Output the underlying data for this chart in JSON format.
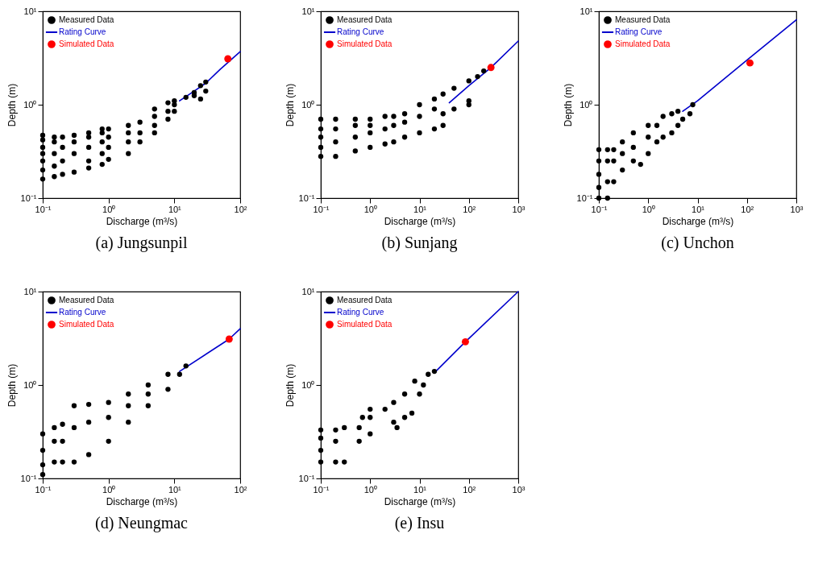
{
  "chart_data": [
    {
      "type": "scatter",
      "title": "(a) Jungsunpil",
      "xlabel": "Discharge (m³/s)",
      "ylabel": "Depth (m)",
      "log": "xy",
      "legend": "top left",
      "xlim": [
        0.1,
        100
      ],
      "ylim": [
        0.1,
        10
      ],
      "xticks": [
        {
          "value": 0.1,
          "label": "10⁻¹"
        },
        {
          "value": 1,
          "label": "10⁰"
        },
        {
          "value": 10,
          "label": "10¹"
        },
        {
          "value": 100,
          "label": "10²"
        }
      ],
      "yticks": [
        {
          "value": 0.1,
          "label": "10⁻¹"
        },
        {
          "value": 1,
          "label": "10⁰"
        },
        {
          "value": 10,
          "label": "10¹"
        }
      ],
      "series": [
        {
          "name": "Measured Data",
          "type": "scatter",
          "marker": "circle",
          "color": "#000000",
          "x": [
            0.1,
            0.1,
            0.1,
            0.1,
            0.1,
            0.1,
            0.1,
            0.15,
            0.15,
            0.15,
            0.15,
            0.15,
            0.2,
            0.2,
            0.2,
            0.2,
            0.3,
            0.3,
            0.3,
            0.3,
            0.5,
            0.5,
            0.5,
            0.5,
            0.5,
            0.8,
            0.8,
            0.8,
            0.8,
            0.8,
            1,
            1,
            1,
            1,
            2,
            2,
            2,
            2,
            3,
            3,
            3,
            5,
            5,
            5,
            5,
            8,
            8,
            8,
            10,
            10,
            10,
            15,
            20,
            20,
            25,
            25,
            30,
            30
          ],
          "values": [
            0.16,
            0.2,
            0.25,
            0.3,
            0.35,
            0.42,
            0.47,
            0.17,
            0.22,
            0.3,
            0.4,
            0.45,
            0.18,
            0.25,
            0.35,
            0.45,
            0.19,
            0.3,
            0.4,
            0.47,
            0.21,
            0.25,
            0.35,
            0.45,
            0.5,
            0.23,
            0.3,
            0.4,
            0.5,
            0.55,
            0.26,
            0.35,
            0.45,
            0.55,
            0.3,
            0.4,
            0.5,
            0.6,
            0.4,
            0.5,
            0.65,
            0.5,
            0.6,
            0.75,
            0.9,
            0.7,
            0.85,
            1.05,
            0.85,
            1.0,
            1.1,
            1.2,
            1.35,
            1.25,
            1.6,
            1.15,
            1.75,
            1.4
          ]
        },
        {
          "name": "Rating Curve",
          "type": "line",
          "color": "#0000cc",
          "x": [
            12,
            20,
            30,
            50,
            100
          ],
          "values": [
            1.1,
            1.4,
            1.7,
            2.4,
            3.7
          ]
        },
        {
          "name": "Simulated Data",
          "type": "scatter",
          "marker": "circle",
          "color": "#ff0000",
          "x": [
            65
          ],
          "values": [
            3.1
          ]
        }
      ]
    },
    {
      "type": "scatter",
      "title": "(b) Sunjang",
      "xlabel": "Discharge (m³/s)",
      "ylabel": "Depth (m)",
      "log": "xy",
      "legend": "top left",
      "xlim": [
        0.1,
        1000
      ],
      "ylim": [
        0.1,
        10
      ],
      "xticks": [
        {
          "value": 0.1,
          "label": "10⁻¹"
        },
        {
          "value": 1,
          "label": "10⁰"
        },
        {
          "value": 10,
          "label": "10¹"
        },
        {
          "value": 100,
          "label": "10²"
        },
        {
          "value": 1000,
          "label": "10³"
        }
      ],
      "yticks": [
        {
          "value": 0.1,
          "label": "10⁻¹"
        },
        {
          "value": 1,
          "label": "10⁰"
        },
        {
          "value": 10,
          "label": "10¹"
        }
      ],
      "series": [
        {
          "name": "Measured Data",
          "type": "scatter",
          "marker": "circle",
          "color": "#000000",
          "x": [
            0.1,
            0.1,
            0.1,
            0.1,
            0.1,
            0.2,
            0.2,
            0.2,
            0.2,
            0.5,
            0.5,
            0.5,
            0.5,
            1,
            1,
            1,
            1,
            2,
            2,
            2,
            3,
            3,
            3,
            5,
            5,
            5,
            10,
            10,
            10,
            20,
            20,
            20,
            30,
            30,
            30,
            50,
            50,
            100,
            100,
            100,
            150,
            200
          ],
          "values": [
            0.28,
            0.35,
            0.45,
            0.55,
            0.7,
            0.28,
            0.4,
            0.55,
            0.7,
            0.32,
            0.45,
            0.6,
            0.7,
            0.35,
            0.5,
            0.6,
            0.7,
            0.38,
            0.55,
            0.75,
            0.4,
            0.6,
            0.75,
            0.45,
            0.65,
            0.8,
            0.5,
            0.75,
            1.0,
            0.55,
            0.9,
            1.15,
            0.6,
            0.8,
            1.3,
            0.9,
            1.5,
            1.0,
            1.1,
            1.8,
            2.0,
            2.3
          ]
        },
        {
          "name": "Rating Curve",
          "type": "line",
          "color": "#0000cc",
          "x": [
            40,
            100,
            280,
            1000
          ],
          "values": [
            1.05,
            1.6,
            2.5,
            4.8
          ]
        },
        {
          "name": "Simulated Data",
          "type": "scatter",
          "marker": "circle",
          "color": "#ff0000",
          "x": [
            280
          ],
          "values": [
            2.5
          ]
        }
      ]
    },
    {
      "type": "scatter",
      "title": "(c) Unchon",
      "xlabel": "Discharge (m³/s)",
      "ylabel": "Depth (m)",
      "log": "xy",
      "legend": "top left",
      "xlim": [
        0.1,
        1000
      ],
      "ylim": [
        0.1,
        10
      ],
      "xticks": [
        {
          "value": 0.1,
          "label": "10⁻¹"
        },
        {
          "value": 1,
          "label": "10⁰"
        },
        {
          "value": 10,
          "label": "10¹"
        },
        {
          "value": 100,
          "label": "10²"
        },
        {
          "value": 1000,
          "label": "10³"
        }
      ],
      "yticks": [
        {
          "value": 0.1,
          "label": "10⁻¹"
        },
        {
          "value": 1,
          "label": "10⁰"
        },
        {
          "value": 10,
          "label": "10¹"
        }
      ],
      "series": [
        {
          "name": "Measured Data",
          "type": "scatter",
          "marker": "circle",
          "color": "#000000",
          "x": [
            0.1,
            0.1,
            0.1,
            0.1,
            0.1,
            0.15,
            0.15,
            0.15,
            0.15,
            0.2,
            0.2,
            0.2,
            0.3,
            0.3,
            0.3,
            0.5,
            0.5,
            0.5,
            0.7,
            1,
            1,
            1,
            1.5,
            1.5,
            2,
            2,
            3,
            3,
            4,
            4,
            5,
            7,
            8
          ],
          "values": [
            0.1,
            0.13,
            0.18,
            0.25,
            0.33,
            0.1,
            0.15,
            0.25,
            0.33,
            0.15,
            0.25,
            0.33,
            0.2,
            0.3,
            0.4,
            0.25,
            0.35,
            0.5,
            0.23,
            0.3,
            0.45,
            0.6,
            0.4,
            0.6,
            0.45,
            0.75,
            0.5,
            0.8,
            0.6,
            0.85,
            0.7,
            0.8,
            1.0
          ]
        },
        {
          "name": "Rating Curve",
          "type": "line",
          "color": "#0000cc",
          "x": [
            5,
            10,
            100,
            1000
          ],
          "values": [
            0.85,
            1.1,
            3.0,
            8.1
          ]
        },
        {
          "name": "Simulated Data",
          "type": "scatter",
          "marker": "circle",
          "color": "#ff0000",
          "x": [
            115
          ],
          "values": [
            2.8
          ]
        }
      ]
    },
    {
      "type": "scatter",
      "title": "(d) Neungmac",
      "xlabel": "Discharge (m³/s)",
      "ylabel": "Depth (m)",
      "log": "xy",
      "legend": "top left",
      "xlim": [
        0.1,
        100
      ],
      "ylim": [
        0.1,
        10
      ],
      "xticks": [
        {
          "value": 0.1,
          "label": "10⁻¹"
        },
        {
          "value": 1,
          "label": "10⁰"
        },
        {
          "value": 10,
          "label": "10¹"
        },
        {
          "value": 100,
          "label": "10²"
        }
      ],
      "yticks": [
        {
          "value": 0.1,
          "label": "10⁻¹"
        },
        {
          "value": 1,
          "label": "10⁰"
        },
        {
          "value": 10,
          "label": "10¹"
        }
      ],
      "series": [
        {
          "name": "Measured Data",
          "type": "scatter",
          "marker": "circle",
          "color": "#000000",
          "x": [
            0.1,
            0.1,
            0.1,
            0.1,
            0.15,
            0.15,
            0.15,
            0.2,
            0.2,
            0.2,
            0.3,
            0.3,
            0.3,
            0.5,
            0.5,
            0.5,
            1,
            1,
            1,
            2,
            2,
            2,
            4,
            4,
            4,
            8,
            8,
            12,
            15
          ],
          "values": [
            0.11,
            0.14,
            0.2,
            0.3,
            0.15,
            0.25,
            0.35,
            0.15,
            0.25,
            0.38,
            0.15,
            0.35,
            0.6,
            0.18,
            0.4,
            0.62,
            0.25,
            0.45,
            0.65,
            0.4,
            0.6,
            0.8,
            0.6,
            0.8,
            1.0,
            0.9,
            1.3,
            1.3,
            1.6
          ]
        },
        {
          "name": "Rating Curve",
          "type": "line",
          "color": "#0000cc",
          "x": [
            12,
            68,
            100
          ],
          "values": [
            1.4,
            3.1,
            4.0
          ]
        },
        {
          "name": "Simulated Data",
          "type": "scatter",
          "marker": "circle",
          "color": "#ff0000",
          "x": [
            68
          ],
          "values": [
            3.1
          ]
        }
      ]
    },
    {
      "type": "scatter",
      "title": "(e) Insu",
      "xlabel": "Discharge (m³/s)",
      "ylabel": "Depth (m)",
      "log": "xy",
      "legend": "top left",
      "xlim": [
        0.1,
        1000
      ],
      "ylim": [
        0.1,
        10
      ],
      "xticks": [
        {
          "value": 0.1,
          "label": "10⁻¹"
        },
        {
          "value": 1,
          "label": "10⁰"
        },
        {
          "value": 10,
          "label": "10¹"
        },
        {
          "value": 100,
          "label": "10²"
        },
        {
          "value": 1000,
          "label": "10³"
        }
      ],
      "yticks": [
        {
          "value": 0.1,
          "label": "10⁻¹"
        },
        {
          "value": 1,
          "label": "10⁰"
        },
        {
          "value": 10,
          "label": "10¹"
        }
      ],
      "series": [
        {
          "name": "Measured Data",
          "type": "scatter",
          "marker": "circle",
          "color": "#000000",
          "x": [
            0.1,
            0.1,
            0.1,
            0.1,
            0.2,
            0.2,
            0.2,
            0.3,
            0.3,
            0.6,
            0.6,
            0.7,
            1,
            1,
            1,
            2,
            3,
            3,
            3.5,
            5,
            5,
            7,
            8,
            10,
            12,
            15,
            20
          ],
          "values": [
            0.15,
            0.2,
            0.27,
            0.33,
            0.15,
            0.25,
            0.33,
            0.15,
            0.35,
            0.25,
            0.35,
            0.45,
            0.3,
            0.45,
            0.55,
            0.55,
            0.4,
            0.65,
            0.35,
            0.8,
            0.45,
            0.5,
            1.1,
            0.8,
            1.0,
            1.3,
            1.4
          ]
        },
        {
          "name": "Rating Curve",
          "type": "line",
          "color": "#0000cc",
          "x": [
            20,
            85,
            1000
          ],
          "values": [
            1.35,
            2.9,
            10
          ]
        },
        {
          "name": "Simulated Data",
          "type": "scatter",
          "marker": "circle",
          "color": "#ff0000",
          "x": [
            85
          ],
          "values": [
            2.9
          ]
        }
      ]
    }
  ]
}
